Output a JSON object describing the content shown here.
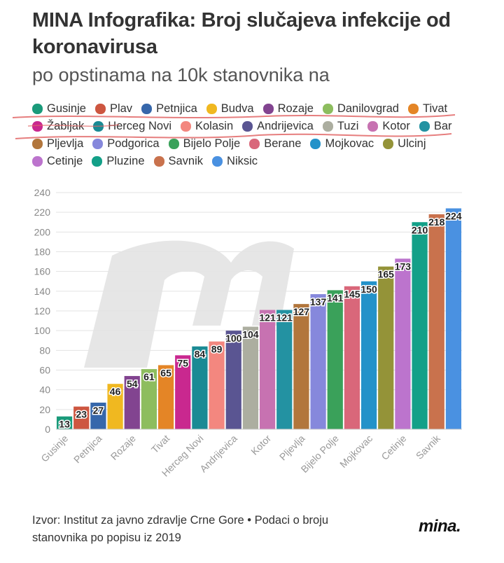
{
  "header": {
    "title": "MINA Infografika: Broj slučajeva infekcije od koronavirusa",
    "subtitle": "po opstinama na 10k stanovnika na"
  },
  "chart_data": {
    "type": "bar",
    "title": "MINA Infografika: Broj slučajeva infekcije od koronavirusa",
    "subtitle": "po opstinama na 10k stanovnika na",
    "categories": [
      "Gusinje",
      "Plav",
      "Petnjica",
      "Budva",
      "Rozaje",
      "Danilovgrad",
      "Tivat",
      "Žabljak",
      "Herceg Novi",
      "Kolasin",
      "Andrijevica",
      "Tuzi",
      "Kotor",
      "Bar",
      "Pljevlja",
      "Podgorica",
      "Bijelo Polje",
      "Berane",
      "Mojkovac",
      "Ulcinj",
      "Cetinje",
      "Pluzine",
      "Savnik",
      "Niksic"
    ],
    "values": [
      13,
      23,
      27,
      46,
      54,
      61,
      65,
      75,
      84,
      89,
      100,
      104,
      121,
      121,
      127,
      137,
      141,
      145,
      150,
      165,
      173,
      210,
      218,
      224
    ],
    "value_labels": [
      "13",
      "23",
      "27",
      "46",
      "54",
      "61",
      "65",
      "75",
      "84",
      "89",
      "100",
      "104",
      "121",
      "121",
      "127",
      "137",
      "141",
      "145",
      "150",
      "165",
      "173",
      "210",
      "218",
      "224"
    ],
    "colors": [
      "#1a9a7a",
      "#cd5640",
      "#3667ab",
      "#f0b820",
      "#824490",
      "#8dbd5e",
      "#e48526",
      "#c9288f",
      "#1a8a94",
      "#f3877f",
      "#5a5592",
      "#acaea0",
      "#c772b1",
      "#2392a2",
      "#b2763c",
      "#8688dc",
      "#3aa15a",
      "#d9677a",
      "#2392c9",
      "#949338",
      "#bc74cd",
      "#13a088",
      "#c9724d",
      "#4a91e1"
    ],
    "x_tick_labels": [
      "Gusinje",
      "Petnjica",
      "Rozaje",
      "Tivat",
      "Herceg Novi",
      "Andrijevica",
      "Kotor",
      "Pljevlja",
      "Bijelo Polje",
      "Mojkovac",
      "Cetinje",
      "Savnik"
    ],
    "y_ticks": [
      "0",
      "20",
      "40",
      "60",
      "80",
      "100",
      "120",
      "140",
      "160",
      "180",
      "200",
      "220",
      "240"
    ],
    "ylim": [
      0,
      240
    ],
    "grid": true,
    "legend": "top"
  },
  "footer": {
    "source_line1": "Izvor: Institut za javno zdravlje Crne Gore • Podaci o broju",
    "source_line2": "stanovnika po popisu iz 2019",
    "logo": "mina."
  }
}
